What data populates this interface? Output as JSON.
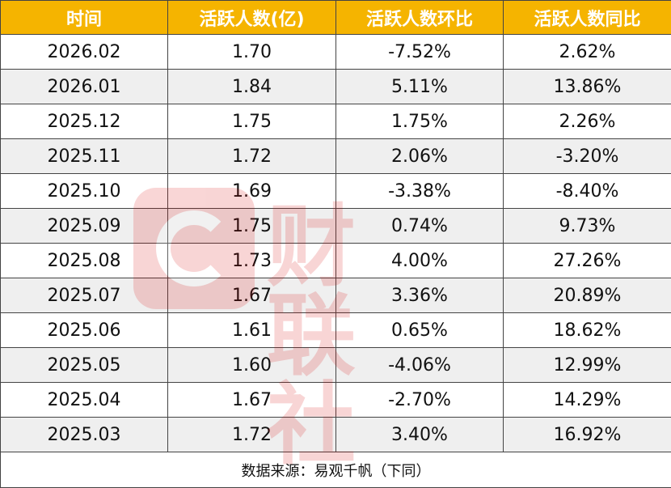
{
  "table": {
    "headers": [
      "时间",
      "活跃人数(亿)",
      "活跃人数环比",
      "活跃人数同比"
    ],
    "rows": [
      [
        "2026.02",
        "1.70",
        "-7.52%",
        "2.62%"
      ],
      [
        "2026.01",
        "1.84",
        "5.11%",
        "13.86%"
      ],
      [
        "2025.12",
        "1.75",
        "1.75%",
        "2.26%"
      ],
      [
        "2025.11",
        "1.72",
        "2.06%",
        "-3.20%"
      ],
      [
        "2025.10",
        "1.69",
        "-3.38%",
        "-8.40%"
      ],
      [
        "2025.09",
        "1.75",
        "0.74%",
        "9.73%"
      ],
      [
        "2025.08",
        "1.73",
        "4.00%",
        "27.26%"
      ],
      [
        "2025.07",
        "1.67",
        "3.36%",
        "20.89%"
      ],
      [
        "2025.06",
        "1.61",
        "0.65%",
        "18.62%"
      ],
      [
        "2025.05",
        "1.60",
        "-4.06%",
        "12.99%"
      ],
      [
        "2025.04",
        "1.67",
        "-2.70%",
        "14.29%"
      ],
      [
        "2025.03",
        "1.72",
        "3.40%",
        "16.92%"
      ]
    ],
    "footer": "数据来源：易观千帆（下同）"
  },
  "watermark": {
    "text": "财联社"
  },
  "colors": {
    "header_bg": "#f5b400",
    "header_text": "#ffffff",
    "stripe": "#efefef",
    "border": "#444444"
  }
}
